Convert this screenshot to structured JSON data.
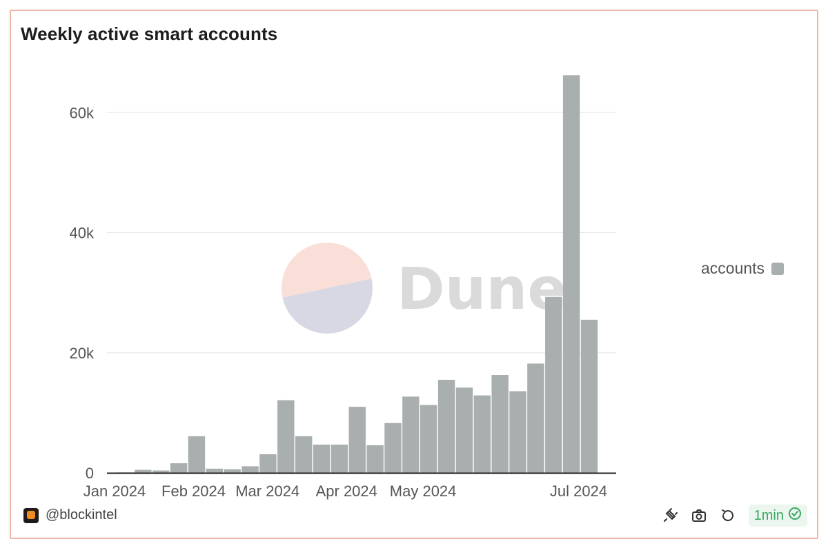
{
  "title": "Weekly active smart accounts",
  "watermark": "Dune",
  "author": "@blockintel",
  "refresh_label": "1min",
  "colors": {
    "bar": "#a9aeaf",
    "grid": "#e5e5e5",
    "axis": "#222222",
    "tick_text": "#555555",
    "border": "#efb6a7",
    "watermark_top": "#f9dfd8",
    "watermark_bottom": "#d8d8e4",
    "watermark_text": "#dadada"
  },
  "icons": [
    "plug-icon",
    "camera-icon",
    "refresh-icon",
    "check-circle-icon",
    "author-logo-icon"
  ],
  "chart_data": {
    "type": "bar",
    "title": "Weekly active smart accounts",
    "xlabel": "",
    "ylabel": "",
    "ylim": [
      0,
      66000
    ],
    "grid": true,
    "legend_position": "right",
    "yticks": [
      0,
      20000,
      40000,
      60000
    ],
    "ytick_labels": [
      "0",
      "20k",
      "40k",
      "60k"
    ],
    "xtick_labels": [
      "Jan 2024",
      "Feb 2024",
      "Mar 2024",
      "Apr 2024",
      "May 2024",
      "Jul 2024"
    ],
    "xtick_dates": [
      "2024-01-01",
      "2024-02-01",
      "2024-03-01",
      "2024-04-01",
      "2024-05-01",
      "2024-07-01"
    ],
    "x": [
      "2024-01-01",
      "2024-01-08",
      "2024-01-15",
      "2024-01-22",
      "2024-01-29",
      "2024-02-05",
      "2024-02-12",
      "2024-02-19",
      "2024-02-26",
      "2024-03-04",
      "2024-03-11",
      "2024-03-18",
      "2024-03-25",
      "2024-04-01",
      "2024-04-08",
      "2024-04-15",
      "2024-04-22",
      "2024-04-29",
      "2024-05-06",
      "2024-05-13",
      "2024-05-20",
      "2024-05-27",
      "2024-06-03",
      "2024-06-10",
      "2024-06-17",
      "2024-06-24",
      "2024-07-01"
    ],
    "series": [
      {
        "name": "accounts",
        "values": [
          80,
          500,
          400,
          1600,
          6100,
          700,
          600,
          1100,
          3100,
          12100,
          6100,
          4700,
          4700,
          11000,
          4600,
          8300,
          12700,
          11300,
          15500,
          14200,
          12900,
          16300,
          13600,
          18200,
          29300,
          66200,
          25500
        ]
      }
    ]
  }
}
